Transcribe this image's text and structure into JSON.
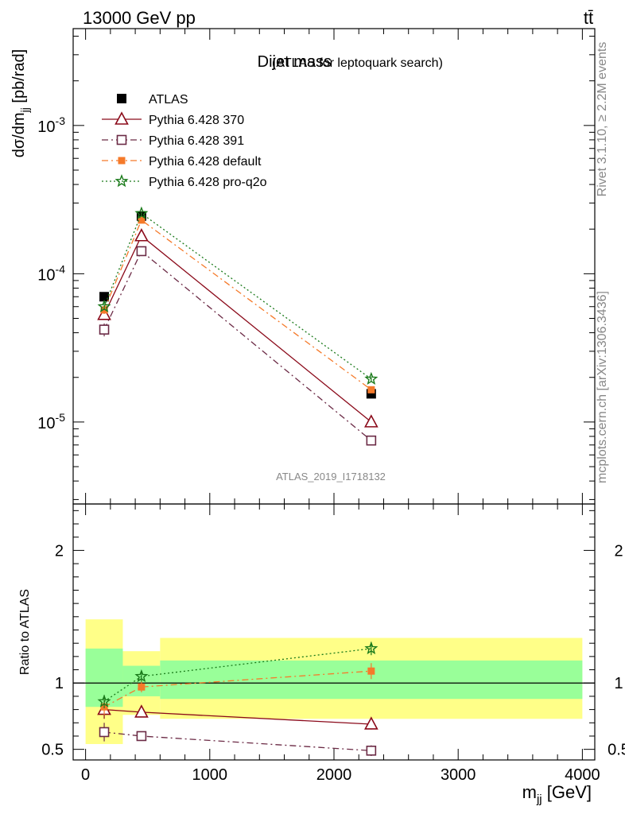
{
  "header": {
    "energy_label": "13000 GeV pp",
    "process_label": "tt̄"
  },
  "side_text": {
    "rivet": "Rivet 3.1.10, ≥ 2.2M events",
    "source": "mcplots.cern.ch [arXiv:1306.3436]"
  },
  "chart_data": [
    {
      "type": "line",
      "panel": "main",
      "title": "Dijet mass",
      "subtitle": "(ATLAS for leptoquark search)",
      "watermark": "ATLAS_2019_I1718132",
      "ylabel": "dσ/dm_jj [pb/rad]",
      "yscale": "log",
      "ylim": [
        2.8e-06,
        0.0045
      ],
      "xlim": [
        -100,
        4100
      ],
      "y_ticks": [
        {
          "value": 0.001,
          "label": "10",
          "exp": "-3"
        },
        {
          "value": 0.0001,
          "label": "10",
          "exp": "-4"
        },
        {
          "value": 1e-05,
          "label": "10",
          "exp": "-5"
        }
      ],
      "legend_position": "top-left",
      "series": [
        {
          "name": "ATLAS",
          "color": "#000000",
          "marker": "filled-square",
          "line": "none",
          "x": [
            150,
            450,
            2300
          ],
          "y": [
            7e-05,
            0.000245,
            1.55e-05
          ]
        },
        {
          "name": "Pythia 6.428 370",
          "color": "#8b0a1a",
          "marker": "open-triangle",
          "line": "solid",
          "x": [
            150,
            450,
            2300
          ],
          "y": [
            5.3e-05,
            0.00018,
            1e-05
          ],
          "yerr": [
            0.06,
            0.04,
            0.05
          ]
        },
        {
          "name": "Pythia 6.428 391",
          "color": "#6b2a45",
          "marker": "open-square",
          "line": "dashdot",
          "x": [
            150,
            450,
            2300
          ],
          "y": [
            4.2e-05,
            0.000142,
            7.5e-06
          ],
          "yerr": [
            0.1,
            0.06,
            0.06
          ]
        },
        {
          "name": "Pythia 6.428 default",
          "color": "#f57a2a",
          "marker": "filled-square-small",
          "line": "dashdot",
          "x": [
            150,
            450,
            2300
          ],
          "y": [
            5.7e-05,
            0.00023,
            1.65e-05
          ],
          "yerr": [
            0.06,
            0.04,
            0.04
          ]
        },
        {
          "name": "Pythia 6.428 pro-q2o",
          "color": "#1a7a1a",
          "marker": "star",
          "line": "dotted",
          "x": [
            150,
            450,
            2300
          ],
          "y": [
            6e-05,
            0.000255,
            1.95e-05
          ],
          "yerr": [
            0.05,
            0.03,
            0.04
          ]
        }
      ]
    },
    {
      "type": "line",
      "panel": "ratio",
      "ylabel": "Ratio to ATLAS",
      "xlabel": "m_jj [GeV]",
      "ylim": [
        0.42,
        2.35
      ],
      "xlim": [
        -100,
        4100
      ],
      "x_ticks": [
        0,
        1000,
        2000,
        3000,
        4000
      ],
      "y_ticks": [
        0.5,
        1,
        2
      ],
      "reference_line": 1,
      "bands": [
        {
          "x0": 0,
          "x1": 300,
          "inner": [
            0.82,
            1.26
          ],
          "outer": [
            0.54,
            1.48
          ]
        },
        {
          "x0": 300,
          "x1": 600,
          "inner": [
            0.9,
            1.13
          ],
          "outer": [
            0.76,
            1.24
          ]
        },
        {
          "x0": 600,
          "x1": 4000,
          "inner": [
            0.88,
            1.17
          ],
          "outer": [
            0.73,
            1.34
          ]
        }
      ],
      "band_colors": {
        "inner": "#99ff99",
        "outer": "#ffff88"
      },
      "series": [
        {
          "name": "Pythia 6.428 370",
          "color": "#8b0a1a",
          "marker": "open-triangle",
          "line": "solid",
          "x": [
            150,
            450,
            2300
          ],
          "y": [
            0.8,
            0.78,
            0.69
          ],
          "yerr": [
            0.07,
            0.03,
            0.04
          ]
        },
        {
          "name": "Pythia 6.428 391",
          "color": "#6b2a45",
          "marker": "open-square",
          "line": "dashdot",
          "x": [
            150,
            450,
            2300
          ],
          "y": [
            0.63,
            0.6,
            0.49
          ],
          "yerr": [
            0.07,
            0.03,
            0.04
          ]
        },
        {
          "name": "Pythia 6.428 default",
          "color": "#f57a2a",
          "marker": "filled-square-small",
          "line": "dashdot",
          "x": [
            150,
            450,
            2300
          ],
          "y": [
            0.82,
            0.97,
            1.09
          ],
          "yerr": [
            0.06,
            0.04,
            0.06
          ]
        },
        {
          "name": "Pythia 6.428 pro-q2o",
          "color": "#1a7a1a",
          "marker": "star",
          "line": "dotted",
          "x": [
            150,
            450,
            2300
          ],
          "y": [
            0.86,
            1.05,
            1.26
          ],
          "yerr": [
            0.05,
            0.04,
            0.05
          ]
        }
      ]
    }
  ]
}
